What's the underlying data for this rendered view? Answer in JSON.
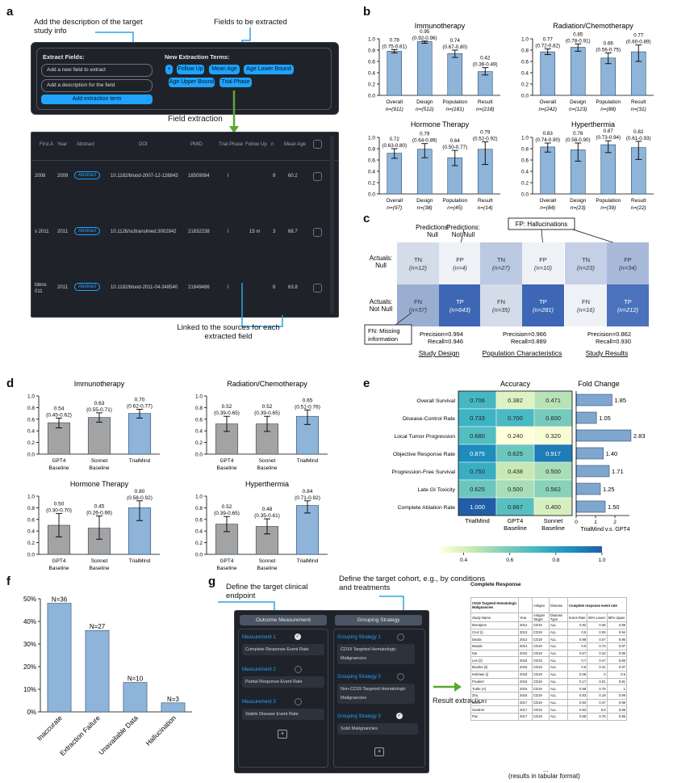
{
  "panel_labels": {
    "a": "a",
    "b": "b",
    "c": "c",
    "d": "d",
    "e": "e",
    "f": "f",
    "g": "g"
  },
  "panel_a": {
    "callout_target": "Add the description of the target study info",
    "callout_fields": "Fields to be extracted",
    "extract_fields_title": "Extract Fields:",
    "field_name_placeholder": "Add a new field to extract",
    "field_desc_placeholder": "Add a description for the field",
    "add_button": "Add extraction term",
    "new_terms_title": "New Extraction Terms:",
    "terms": [
      "Follow Up",
      "Mean Age",
      "Age Lower Bound",
      "Age Upper Bound",
      "Trial Phase"
    ],
    "plus": "+",
    "field_extraction": "Field extraction",
    "table_headers": [
      "First A",
      "Year",
      "Abstract",
      "DOI",
      "PMID",
      "Trial Phase",
      "Follow Up",
      "n",
      "Mean Age"
    ],
    "rows": [
      {
        "first": "2008",
        "year": "2009",
        "abstract": "Abstract",
        "doi": "10.1182/blood-2007-12-128843",
        "pmid": "18509084",
        "phase": "I",
        "follow": "",
        "n": "9",
        "age": "60.2"
      },
      {
        "first": "s 2011",
        "year": "2011",
        "abstract": "Abstract",
        "doi": "10.1126/scitranslmed.3002842",
        "pmid": "21832238",
        "phase": "I",
        "follow": "15 m",
        "n": "3",
        "age": "68.7"
      },
      {
        "first": "tdens 011",
        "year": "2011",
        "abstract": "Abstract",
        "doi": "10.1182/blood-2011-04-348540",
        "pmid": "21849486",
        "phase": "I",
        "follow": "",
        "n": "8",
        "age": "63.8"
      }
    ],
    "callout_linked": "Linked to the sources for each extracted field"
  },
  "chart_data": [
    {
      "id": "b",
      "type": "bar",
      "ylim": [
        0,
        1.0
      ],
      "yticks": [
        "0.0",
        "0.2",
        "0.4",
        "0.6",
        "0.8",
        "1.0"
      ],
      "subplots": [
        {
          "title": "Immunotherapy",
          "categories": [
            "Overall",
            "Design",
            "Population",
            "Result"
          ],
          "n": [
            "n=(911)",
            "n=(512)",
            "n=(181)",
            "n=(218)"
          ],
          "values": [
            0.78,
            0.95,
            0.74,
            0.42
          ],
          "ci": [
            [
              0.75,
              0.81
            ],
            [
              0.92,
              0.96
            ],
            [
              0.67,
              0.8
            ],
            [
              0.36,
              0.49
            ]
          ],
          "labels": [
            "0.78",
            "0.95",
            "0.74",
            "0.42"
          ],
          "ci_labels": [
            "(0.75-0.81)",
            "(0.92-0.96)",
            "(0.67-0.80)",
            "(0.36-0.49)"
          ]
        },
        {
          "title": "Radiation/Chemotherapy",
          "categories": [
            "Overall",
            "Design",
            "Population",
            "Result"
          ],
          "n": [
            "n=(242)",
            "n=(123)",
            "n=(88)",
            "n=(31)"
          ],
          "values": [
            0.77,
            0.85,
            0.66,
            0.77
          ],
          "ci": [
            [
              0.72,
              0.82
            ],
            [
              0.78,
              0.91
            ],
            [
              0.56,
              0.75
            ],
            [
              0.6,
              0.89
            ]
          ],
          "labels": [
            "0.77",
            "0.85",
            "0.66",
            "0.77"
          ],
          "ci_labels": [
            "(0.72-0.82)",
            "(0.78-0.91)",
            "(0.56-0.75)",
            "(0.60-0.89)"
          ]
        },
        {
          "title": "Hormone Therapy",
          "categories": [
            "Overall",
            "Design",
            "Population",
            "Result"
          ],
          "n": [
            "n=(97)",
            "n=(38)",
            "n=(45)",
            "n=(14)"
          ],
          "values": [
            0.72,
            0.79,
            0.64,
            0.79
          ],
          "ci": [
            [
              0.63,
              0.8
            ],
            [
              0.64,
              0.89
            ],
            [
              0.5,
              0.77
            ],
            [
              0.52,
              0.92
            ]
          ],
          "labels": [
            "0.72",
            "0.79",
            "0.64",
            "0.79"
          ],
          "ci_labels": [
            "(0.63-0.80)",
            "(0.64-0.89)",
            "(0.50-0.77)",
            "(0.52-0.92)"
          ]
        },
        {
          "title": "Hyperthermia",
          "categories": [
            "Overall",
            "Design",
            "Population",
            "Result"
          ],
          "n": [
            "n=(84)",
            "n=(23)",
            "n=(39)",
            "n=(22)"
          ],
          "values": [
            0.83,
            0.78,
            0.87,
            0.82
          ],
          "ci": [
            [
              0.74,
              0.9
            ],
            [
              0.58,
              0.9
            ],
            [
              0.73,
              0.94
            ],
            [
              0.61,
              0.93
            ]
          ],
          "labels": [
            "0.83",
            "0.78",
            "0.87",
            "0.82"
          ],
          "ci_labels": [
            "(0.74-0.90)",
            "(0.58-0.90)",
            "(0.73-0.94)",
            "(0.61-0.93)"
          ]
        }
      ]
    },
    {
      "id": "c",
      "type": "heatmap",
      "fp_callout": "FP: Hallucinations",
      "fn_callout": "FN: Missing information",
      "pred_null": "Predictions: Null",
      "pred_notnull": "Predictions: Not Null",
      "act_null": "Actuals: Null",
      "act_notnull": "Actuals: Not Null",
      "groups": [
        {
          "title": "Study Design",
          "cells": [
            [
              "TN",
              "(n=12)"
            ],
            [
              "FP",
              "(n=4)"
            ],
            [
              "FN",
              "(n=37)"
            ],
            [
              "TP",
              "(n=643)"
            ]
          ],
          "precision": "Precision=0.994",
          "recall": "Recall=0.946",
          "colors": [
            "#d4dcea",
            "#eef1f5",
            "#9aaed2",
            "#3d67b5"
          ]
        },
        {
          "title": "Population Characteristics",
          "cells": [
            [
              "TN",
              "(n=27)"
            ],
            [
              "FP",
              "(n=10)"
            ],
            [
              "FN",
              "(n=35)"
            ],
            [
              "TP",
              "(n=281)"
            ]
          ],
          "precision": "Precision=0.966",
          "recall": "Recall=0.889",
          "colors": [
            "#bcc9e2",
            "#eef1f5",
            "#d4dcea",
            "#3d67b5"
          ]
        },
        {
          "title": "Study Results",
          "cells": [
            [
              "TN",
              "(n=23)"
            ],
            [
              "FP",
              "(n=34)"
            ],
            [
              "FN",
              "(n=16)"
            ],
            [
              "TP",
              "(n=212)"
            ]
          ],
          "precision": "Precision=0.862",
          "recall": "Recall=0.930",
          "colors": [
            "#c5d0e6",
            "#a8b9da",
            "#eef1f5",
            "#4a73bc"
          ]
        }
      ]
    },
    {
      "id": "d",
      "type": "bar",
      "ylim": [
        0,
        1.0
      ],
      "yticks": [
        "0.0",
        "0.2",
        "0.4",
        "0.6",
        "0.8",
        "1.0"
      ],
      "categories": [
        "GPT4 Baseline",
        "Sonnet Baseline",
        "TrialMind"
      ],
      "subplots": [
        {
          "title": "Immunotherapy",
          "values": [
            0.54,
            0.63,
            0.7
          ],
          "ci": [
            [
              0.45,
              0.62
            ],
            [
              0.55,
              0.71
            ],
            [
              0.62,
              0.77
            ]
          ],
          "labels": [
            "0.54",
            "0.63",
            "0.70"
          ],
          "ci_labels": [
            "(0.45-0.62)",
            "(0.55-0.71)",
            "(0.62-0.77)"
          ]
        },
        {
          "title": "Radiation/Chemotherapy",
          "values": [
            0.52,
            0.52,
            0.65
          ],
          "ci": [
            [
              0.39,
              0.65
            ],
            [
              0.39,
              0.65
            ],
            [
              0.51,
              0.76
            ]
          ],
          "labels": [
            "0.52",
            "0.52",
            "0.65"
          ],
          "ci_labels": [
            "(0.39-0.65)",
            "(0.39-0.65)",
            "(0.51-0.76)"
          ]
        },
        {
          "title": "Hormone Therapy",
          "values": [
            0.5,
            0.45,
            0.8
          ],
          "ci": [
            [
              0.3,
              0.7
            ],
            [
              0.26,
              0.66
            ],
            [
              0.58,
              0.92
            ]
          ],
          "labels": [
            "0.50",
            "0.45",
            "0.80"
          ],
          "ci_labels": [
            "(0.30-0.70)",
            "(0.26-0.66)",
            "(0.58-0.92)"
          ]
        },
        {
          "title": "Hyperthermia",
          "values": [
            0.52,
            0.48,
            0.84
          ],
          "ci": [
            [
              0.39,
              0.65
            ],
            [
              0.35,
              0.61
            ],
            [
              0.71,
              0.92
            ]
          ],
          "labels": [
            "0.52",
            "0.48",
            "0.84"
          ],
          "ci_labels": [
            "(0.39-0.65)",
            "(0.35-0.61)",
            "(0.71-0.92)"
          ]
        }
      ]
    },
    {
      "id": "e",
      "type": "heatmap",
      "title": "Accuracy",
      "fold_title": "Fold Change",
      "rows": [
        "Overall Survival",
        "Disease-Control Rate",
        "Local Tumor Progression",
        "Objective Response Rate",
        "Progression-Free Survival",
        "Late GI Toxicity",
        "Complete Ablation Rate"
      ],
      "columns": [
        "TrialMind",
        "GPT4 Baseline",
        "Sonnet Baseline"
      ],
      "values": [
        [
          0.706,
          0.382,
          0.471
        ],
        [
          0.733,
          0.7,
          0.6
        ],
        [
          0.68,
          0.24,
          0.32
        ],
        [
          0.875,
          0.625,
          0.917
        ],
        [
          0.75,
          0.438,
          0.5
        ],
        [
          0.625,
          0.5,
          0.562
        ],
        [
          1.0,
          0.667,
          0.4
        ]
      ],
      "labels": [
        [
          "0.706",
          "0.382",
          "0.471"
        ],
        [
          "0.733",
          "0.700",
          "0.600"
        ],
        [
          "0.680",
          "0.240",
          "0.320"
        ],
        [
          "0.875",
          "0.625",
          "0.917"
        ],
        [
          "0.750",
          "0.438",
          "0.500"
        ],
        [
          "0.625",
          "0.500",
          "0.562"
        ],
        [
          "1.000",
          "0.667",
          "0.400"
        ]
      ],
      "fold_change": [
        1.85,
        1.05,
        2.83,
        1.4,
        1.71,
        1.25,
        1.5
      ],
      "fold_labels": [
        "1.85",
        "1.05",
        "2.83",
        "1.40",
        "1.71",
        "1.25",
        "1.50"
      ],
      "fold_ticks": [
        "0",
        "1",
        "2"
      ],
      "fold_xlabel": "TrialMind v.s. GPT4",
      "colorbar_ticks": [
        "0.4",
        "0.6",
        "0.8",
        "1.0"
      ],
      "colorbar_range": [
        0.3,
        1.0
      ]
    },
    {
      "id": "f",
      "type": "bar",
      "categories": [
        "Inaccurate",
        "Extraction Failure",
        "Unavailable Data",
        "Hallucination"
      ],
      "values": [
        48,
        36,
        13,
        4
      ],
      "labels": [
        "N=36",
        "N=27",
        "N=10",
        "N=3"
      ],
      "ylim": [
        0,
        50
      ],
      "yticks": [
        "0%",
        "10%",
        "20%",
        "30%",
        "40%",
        "50%"
      ]
    }
  ],
  "panel_g": {
    "callout_endpoint": "Define the target clinical endpoint",
    "callout_cohort": "Define the target cohort, e.g., by conditions and treatments",
    "outcome_header": "Outcome Measurement",
    "grouping_header": "Grouping Strategy",
    "measurements": [
      {
        "label": "Measurement 1",
        "text": "Complete Response Event Rate"
      },
      {
        "label": "Measurement 2",
        "text": "Partial Response Event Rate"
      },
      {
        "label": "Measurement 3",
        "text": "Stable Disease Event Rate"
      }
    ],
    "strategies": [
      {
        "label": "Grouping Strategy 1",
        "text": "CD19 Targeted Hematologic Malignancies"
      },
      {
        "label": "Grouping Strategy 2",
        "text": "Non-CD19 Targeted Hematologic Malignancies"
      },
      {
        "label": "Grouping Strategy 3",
        "text": "Solid Malignancies"
      }
    ],
    "plus": "+",
    "result_extraction": "Result extraction",
    "table_title": "Complete Response",
    "table_group": "CD19 Targeted Hematologic Malignancies",
    "table_header_top": [
      "Antigen",
      "Disease",
      "Complete response event rate"
    ],
    "table_columns": [
      "Study Name",
      "Year",
      "Antigen Target",
      "Disease Type",
      "Event Rate",
      "95% Lower",
      "95% Upper"
    ],
    "table_rows": [
      [
        "Brentjens",
        "2013",
        "CD19",
        "ALL",
        "0.92",
        "0.36",
        "0.99"
      ],
      [
        "Cruz (i)",
        "2013",
        "CD19",
        "ALL",
        "0.5",
        "0.05",
        "0.94"
      ],
      [
        "Davila",
        "2014",
        "CD19",
        "ALL",
        "0.88",
        "0.57",
        "0.96"
      ],
      [
        "Maude",
        "2014",
        "CD19",
        "ALL",
        "0.9",
        "0.73",
        "0.97"
      ],
      [
        "Dai",
        "2015",
        "CD19",
        "ALL",
        "0.67",
        "0.33",
        "0.85"
      ],
      [
        "Lee (ii)",
        "2015",
        "CD19",
        "ALL",
        "0.7",
        "0.47",
        "0.86"
      ],
      [
        "Brudno (ii)",
        "2016",
        "CD19",
        "ALL",
        "0.8",
        "0.31",
        "0.97"
      ],
      [
        "Kebriaei (i)",
        "2016",
        "CD19",
        "ALL",
        "0.06",
        "0",
        "0.5"
      ],
      [
        "Prudent",
        "2016",
        "CD19",
        "ALL",
        "0.17",
        "0.01",
        "0.81"
      ],
      [
        "Turtle (A)",
        "2016",
        "CD19",
        "ALL",
        "0.98",
        "0.76",
        "1"
      ],
      [
        "Zhu",
        "2016",
        "CD19",
        "ALL",
        "0.83",
        "0.19",
        "0.99"
      ],
      [
        "Chen",
        "2017",
        "CD19",
        "ALL",
        "0.83",
        "0.37",
        "0.98"
      ],
      [
        "Gardner",
        "2017",
        "CD19",
        "ALL",
        "0.93",
        "0.8",
        "0.98"
      ],
      [
        "Pan",
        "2017",
        "CD19",
        "ALL",
        "0.88",
        "0.76",
        "0.95"
      ]
    ],
    "ellipsis": "...",
    "tabular_note": "(results in tabular format)"
  },
  "colors": {
    "bar": "#8fb4d9",
    "bar_edge": "#2b4a6b",
    "dark": "#1f2329",
    "accent": "#1fa3ff",
    "arrow": "#5aa832",
    "callout_line": "#2fa3e6"
  }
}
